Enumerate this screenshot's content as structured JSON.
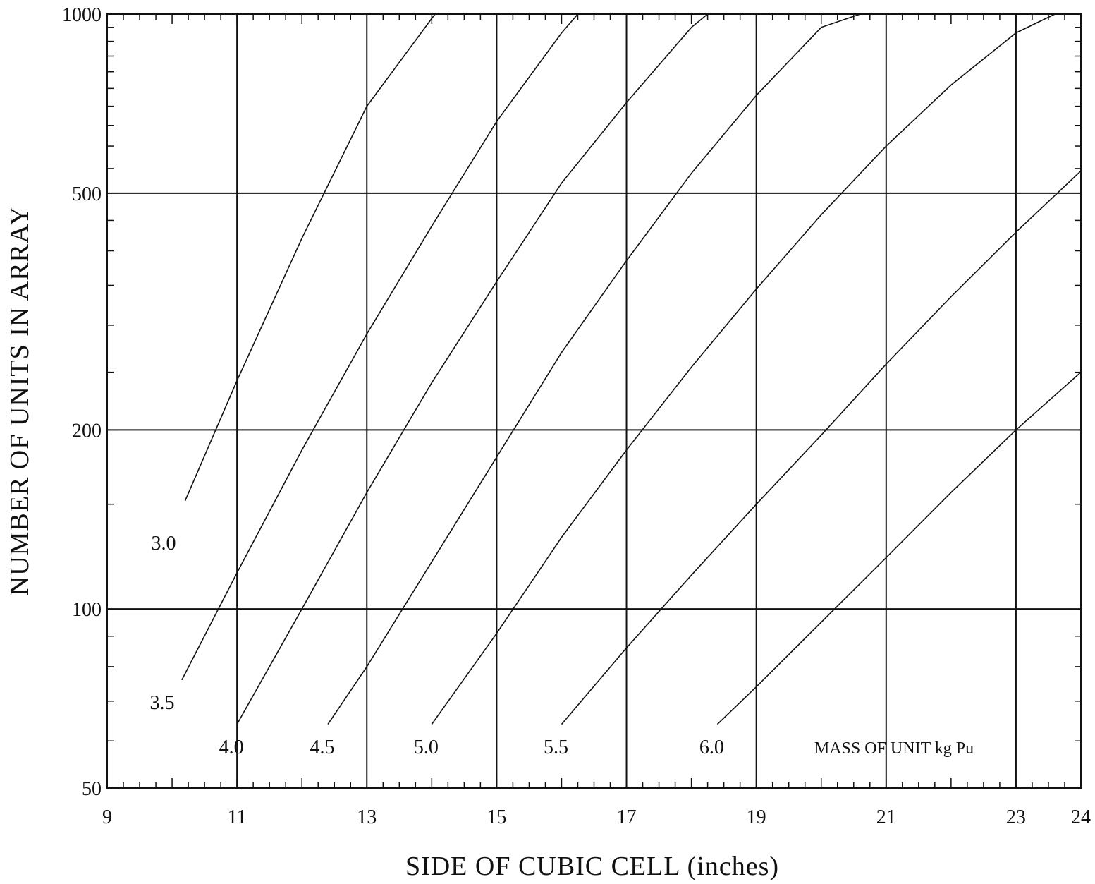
{
  "chart_data": {
    "type": "line",
    "title": "",
    "xlabel": "SIDE OF CUBIC CELL (inches)",
    "ylabel": "NUMBER OF UNITS IN ARRAY",
    "xlim": [
      9,
      24
    ],
    "ylim": [
      50,
      1000
    ],
    "yscale": "log",
    "x_ticks": [
      9,
      11,
      13,
      15,
      17,
      19,
      21,
      23,
      24
    ],
    "y_ticks": [
      50,
      100,
      200,
      500,
      1000
    ],
    "grid": true,
    "legend_title": "MASS OF UNIT kg Pu",
    "series": [
      {
        "name": "3.0",
        "x": [
          10.2,
          11.0,
          12.0,
          13.0,
          14.05
        ],
        "y": [
          152,
          242,
          420,
          700,
          1000
        ]
      },
      {
        "name": "3.5",
        "x": [
          10.15,
          11.0,
          12.0,
          13.0,
          14.0,
          15.0,
          16.0,
          16.25
        ],
        "y": [
          76,
          115,
          185,
          290,
          440,
          660,
          930,
          1000
        ]
      },
      {
        "name": "4.0",
        "x": [
          11.0,
          12.0,
          13.0,
          14.0,
          15.0,
          16.0,
          17.0,
          18.0,
          18.25
        ],
        "y": [
          64,
          100,
          157,
          240,
          355,
          520,
          710,
          950,
          1000
        ]
      },
      {
        "name": "4.5",
        "x": [
          12.4,
          13.0,
          14.0,
          15.0,
          16.0,
          17.0,
          18.0,
          19.0,
          20.0,
          20.6
        ],
        "y": [
          64,
          80,
          120,
          180,
          270,
          385,
          540,
          730,
          950,
          1000
        ]
      },
      {
        "name": "5.0",
        "x": [
          14.0,
          15.0,
          16.0,
          17.0,
          18.0,
          19.0,
          20.0,
          21.0,
          22.0,
          23.0,
          23.6
        ],
        "y": [
          64,
          91,
          132,
          185,
          255,
          345,
          460,
          600,
          760,
          930,
          1000
        ]
      },
      {
        "name": "5.5",
        "x": [
          16.0,
          17.0,
          18.0,
          19.0,
          20.0,
          21.0,
          22.0,
          23.0,
          24.0
        ],
        "y": [
          64,
          86,
          114,
          150,
          196,
          258,
          335,
          430,
          545
        ]
      },
      {
        "name": "6.0",
        "x": [
          18.4,
          19.0,
          20.0,
          21.0,
          22.0,
          23.0,
          24.0
        ],
        "y": [
          64,
          74,
          95,
          122,
          157,
          200,
          250
        ]
      }
    ]
  }
}
